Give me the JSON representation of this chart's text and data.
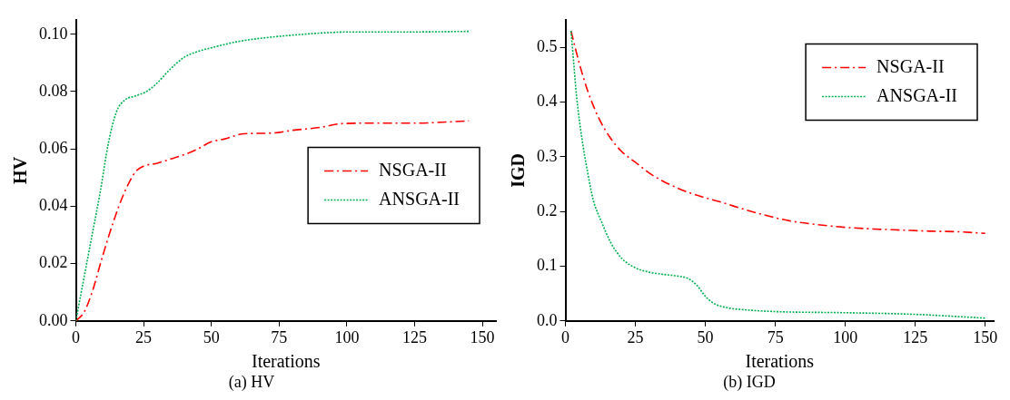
{
  "chart_data": [
    {
      "type": "line",
      "title": "(a) HV",
      "xlabel": "Iterations",
      "ylabel": "HV",
      "xlim": [
        0,
        155
      ],
      "xticks": [
        0,
        25,
        50,
        75,
        100,
        125,
        150
      ],
      "ylim": [
        0,
        0.105
      ],
      "yticks": [
        {
          "value": 0,
          "label": "0.00"
        },
        {
          "value": 0.02,
          "label": "0.02"
        },
        {
          "value": 0.04,
          "label": "0.04"
        },
        {
          "value": 0.06,
          "label": "0.06"
        },
        {
          "value": 0.08,
          "label": "0.08"
        },
        {
          "value": 0.1,
          "label": "0.10"
        }
      ],
      "grid": false,
      "legend": "center right",
      "marker": "none",
      "series": [
        {
          "name": "NSGA-II",
          "color": "#ff0000",
          "line_style": "dashed",
          "x": [
            0,
            3,
            6,
            10,
            14,
            18,
            22,
            25,
            30,
            35,
            40,
            45,
            50,
            55,
            62,
            72,
            80,
            90,
            98,
            110,
            125,
            135,
            145
          ],
          "values": [
            0,
            0.003,
            0.01,
            0.023,
            0.035,
            0.045,
            0.052,
            0.054,
            0.055,
            0.0565,
            0.058,
            0.06,
            0.0625,
            0.0635,
            0.0653,
            0.0655,
            0.0665,
            0.0675,
            0.0688,
            0.069,
            0.069,
            0.0693,
            0.0698
          ]
        },
        {
          "name": "ANSGA-II",
          "color": "#00b050",
          "line_style": "dotted",
          "x": [
            0,
            3,
            6,
            9,
            12,
            15,
            18,
            22,
            26,
            30,
            35,
            40,
            45,
            50,
            60,
            70,
            80,
            90,
            100,
            120,
            145
          ],
          "values": [
            0,
            0.015,
            0.03,
            0.045,
            0.062,
            0.073,
            0.077,
            0.0785,
            0.08,
            0.083,
            0.088,
            0.092,
            0.094,
            0.0953,
            0.0975,
            0.0988,
            0.0997,
            0.1004,
            0.1008,
            0.1008,
            0.101
          ]
        }
      ]
    },
    {
      "type": "line",
      "title": "(b) IGD",
      "xlabel": "Iterations",
      "ylabel": "IGD",
      "xlim": [
        0,
        153
      ],
      "xticks": [
        0,
        25,
        50,
        75,
        100,
        125,
        150
      ],
      "ylim": [
        0,
        0.55
      ],
      "yticks": [
        {
          "value": 0,
          "label": "0.0"
        },
        0.1,
        0.2,
        0.3,
        0.4,
        0.5
      ],
      "grid": false,
      "legend": "top right",
      "marker": "none",
      "series": [
        {
          "name": "NSGA-II",
          "color": "#ff0000",
          "line_style": "dashed",
          "x": [
            2,
            5,
            8,
            12,
            16,
            20,
            25,
            30,
            35,
            40,
            45,
            50,
            55,
            60,
            70,
            80,
            90,
            100,
            110,
            120,
            130,
            140,
            150
          ],
          "values": [
            0.53,
            0.47,
            0.42,
            0.37,
            0.335,
            0.31,
            0.29,
            0.27,
            0.255,
            0.243,
            0.233,
            0.225,
            0.218,
            0.21,
            0.195,
            0.183,
            0.176,
            0.171,
            0.168,
            0.166,
            0.164,
            0.163,
            0.16
          ]
        },
        {
          "name": "ANSGA-II",
          "color": "#00b050",
          "line_style": "dotted",
          "x": [
            2,
            3,
            4,
            6,
            8,
            10,
            13,
            16,
            20,
            25,
            30,
            35,
            40,
            44,
            47,
            50,
            53,
            58,
            65,
            75,
            100,
            125,
            140,
            150
          ],
          "values": [
            0.53,
            0.47,
            0.41,
            0.33,
            0.27,
            0.22,
            0.18,
            0.145,
            0.115,
            0.097,
            0.089,
            0.085,
            0.082,
            0.077,
            0.065,
            0.045,
            0.032,
            0.024,
            0.02,
            0.017,
            0.015,
            0.012,
            0.008,
            0.005
          ]
        }
      ]
    }
  ]
}
